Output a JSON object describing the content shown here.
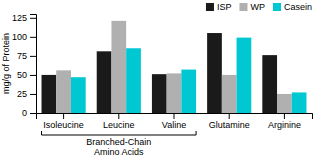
{
  "chart_data": {
    "type": "bar",
    "categories": [
      "Isoleucine",
      "Leucine",
      "Valine",
      "Glutamine",
      "Arginine"
    ],
    "series": [
      {
        "name": "ISP",
        "color": "#1a1a1a",
        "values": [
          50,
          81,
          51,
          105,
          76
        ]
      },
      {
        "name": "WP",
        "color": "#b0b0b0",
        "values": [
          56,
          121,
          52,
          50,
          25
        ]
      },
      {
        "name": "Casein",
        "color": "#00c8d2",
        "values": [
          47,
          85,
          57,
          99,
          27
        ]
      }
    ],
    "ylabel": "mg/g of Protein",
    "ylim": [
      0,
      130
    ],
    "yticks": [
      0,
      25,
      50,
      75,
      100,
      125
    ],
    "grid": false,
    "legend": "upper right",
    "annotations": [
      {
        "text": [
          "Branched-Chain",
          "Amino Acids"
        ],
        "from": "Isoleucine",
        "to": "Valine"
      }
    ]
  }
}
